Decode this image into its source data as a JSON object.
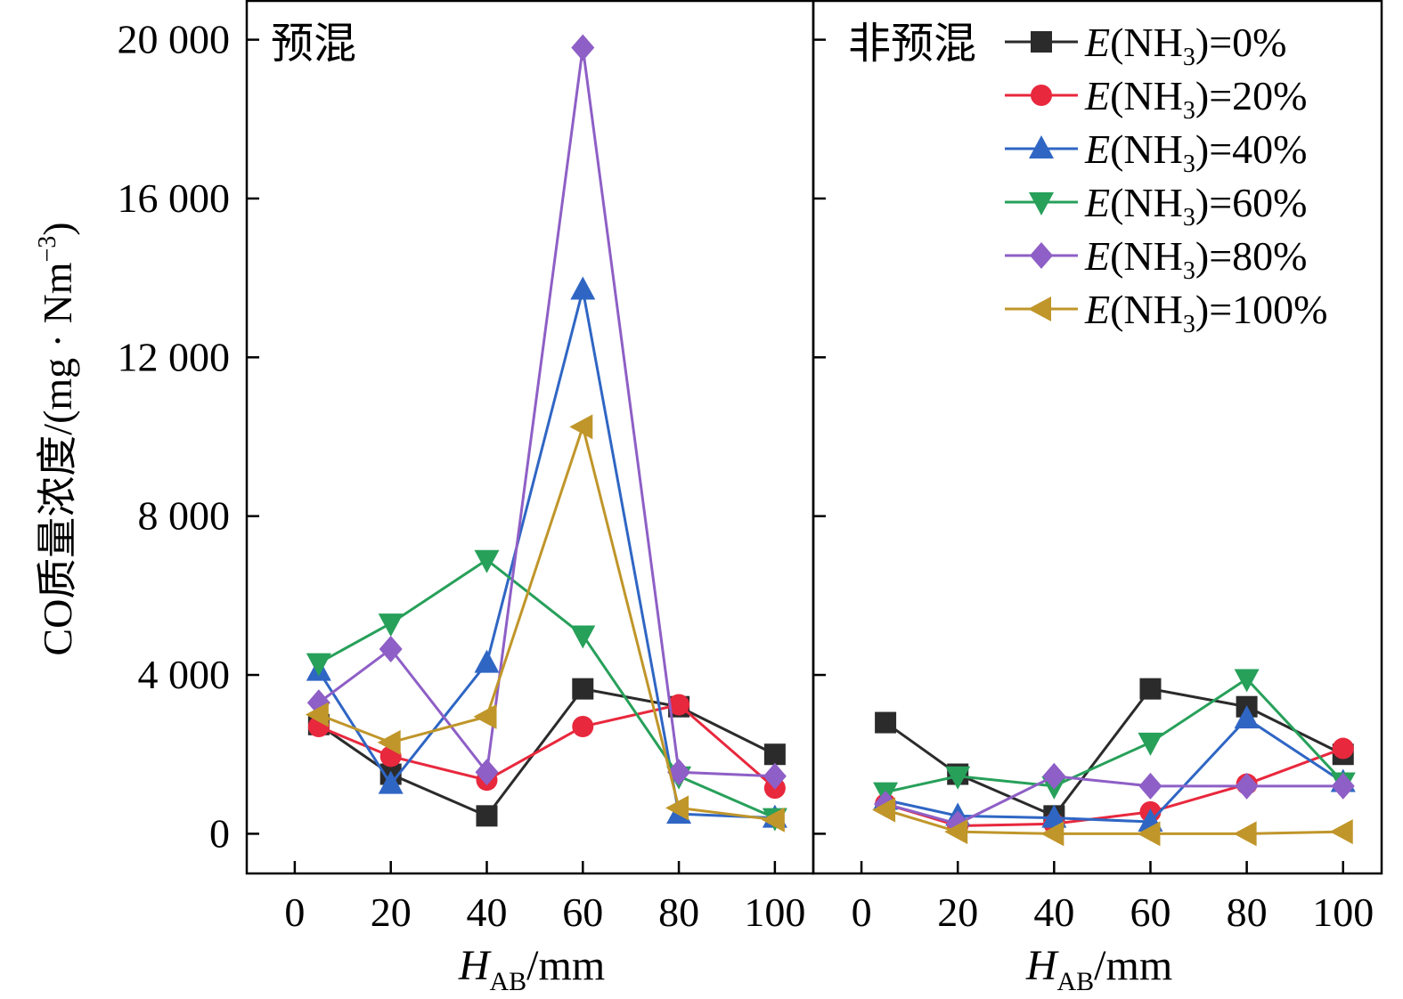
{
  "chart_data": {
    "type": "line",
    "ylabel": "CO质量浓度/(mg · Nm",
    "ylabel_sup": "−3",
    "ylabel_tail": ")",
    "ylim": [
      -1000,
      21000
    ],
    "yticks": [
      0,
      4000,
      8000,
      12000,
      16000,
      20000
    ],
    "ytick_labels": [
      "0",
      "4 000",
      "8 000",
      "12 000",
      "16 000",
      "20 000"
    ],
    "xlim": [
      -10,
      108
    ],
    "xticks": [
      0,
      20,
      40,
      60,
      80,
      100
    ],
    "xtick_labels": [
      "0",
      "20",
      "40",
      "60",
      "80",
      "100"
    ],
    "xlabel_main": "H",
    "xlabel_sub": "AB",
    "xlabel_unit": "/mm",
    "legend": {
      "placement": "top-right",
      "prefix": "E",
      "inner": "(NH",
      "sub": "3",
      "entries": [
        ")=0%",
        ")=20%",
        ")=40%",
        ")=60%",
        ")=80%",
        ")=100%"
      ]
    },
    "styles": [
      {
        "color": "#2b2b2b",
        "marker": "square"
      },
      {
        "color": "#e8283d",
        "marker": "circle"
      },
      {
        "color": "#2f66c4",
        "marker": "triangle-up"
      },
      {
        "color": "#27a05a",
        "marker": "triangle-down"
      },
      {
        "color": "#8e5fc6",
        "marker": "diamond"
      },
      {
        "color": "#c0962a",
        "marker": "triangle-left"
      }
    ],
    "panels": [
      {
        "title": "预混",
        "x": [
          5,
          20,
          40,
          60,
          80,
          100
        ],
        "series": [
          {
            "values": [
              2750,
              1500,
              450,
              3650,
              3200,
              2000
            ]
          },
          {
            "values": [
              2700,
              1950,
              1350,
              2700,
              3250,
              1150
            ]
          },
          {
            "values": [
              4100,
              1250,
              4300,
              13700,
              500,
              400
            ]
          },
          {
            "values": [
              4300,
              5300,
              6900,
              5000,
              1450,
              400
            ]
          },
          {
            "values": [
              3300,
              4650,
              1550,
              19800,
              1550,
              1450
            ]
          },
          {
            "values": [
              3000,
              2300,
              2950,
              10250,
              650,
              350
            ]
          }
        ]
      },
      {
        "title": "非预混",
        "x": [
          5,
          20,
          40,
          60,
          80,
          100
        ],
        "series": [
          {
            "values": [
              2800,
              1500,
              450,
              3650,
              3200,
              2000
            ]
          },
          {
            "values": [
              750,
              200,
              250,
              550,
              1250,
              2150
            ]
          },
          {
            "values": [
              850,
              450,
              400,
              300,
              2900,
              1300
            ]
          },
          {
            "values": [
              1050,
              1450,
              1200,
              2300,
              3900,
              1300
            ]
          },
          {
            "values": [
              750,
              250,
              1450,
              1200,
              1200,
              1200
            ]
          },
          {
            "values": [
              600,
              50,
              0,
              0,
              0,
              50
            ]
          }
        ]
      }
    ]
  }
}
